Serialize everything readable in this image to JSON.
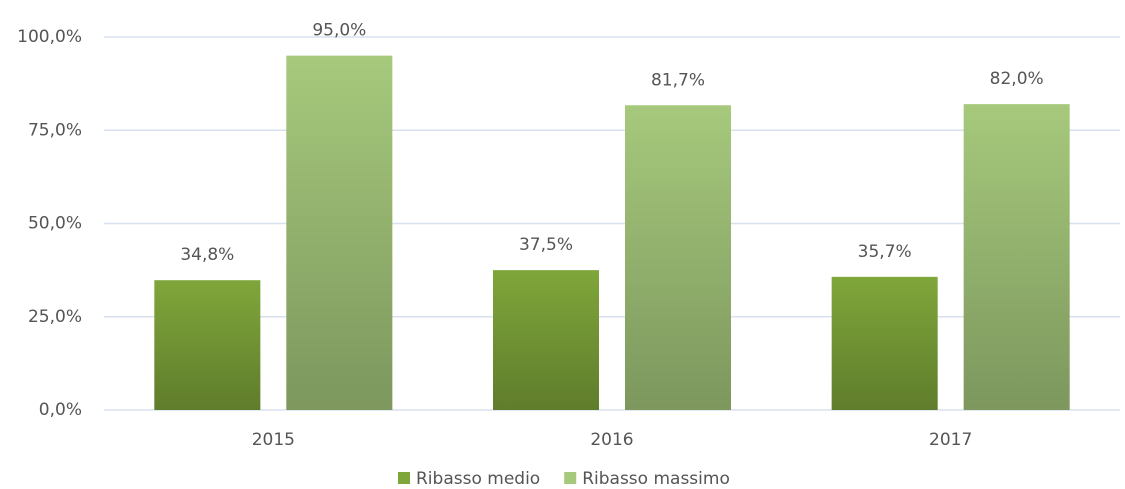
{
  "chart_data": {
    "type": "bar",
    "categories": [
      "2015",
      "2016",
      "2017"
    ],
    "series": [
      {
        "name": "Ribasso medio",
        "color": "#7fa63a",
        "values": [
          34.8,
          37.5,
          35.7
        ],
        "value_labels": [
          "34,8%",
          "37,5%",
          "35,7%"
        ]
      },
      {
        "name": "Ribasso massimo",
        "color": "#a6c97c",
        "values": [
          95.0,
          81.7,
          82.0
        ],
        "value_labels": [
          "95,0%",
          "81,7%",
          "82,0%"
        ]
      }
    ],
    "ylim": [
      0,
      100
    ],
    "yticks": [
      {
        "value": 0,
        "label": "0,0%"
      },
      {
        "value": 25,
        "label": "25,0%"
      },
      {
        "value": 50,
        "label": "50,0%"
      },
      {
        "value": 75,
        "label": "75,0%"
      },
      {
        "value": 100,
        "label": "100,0%"
      }
    ],
    "grid": true,
    "legend": "bottom"
  }
}
